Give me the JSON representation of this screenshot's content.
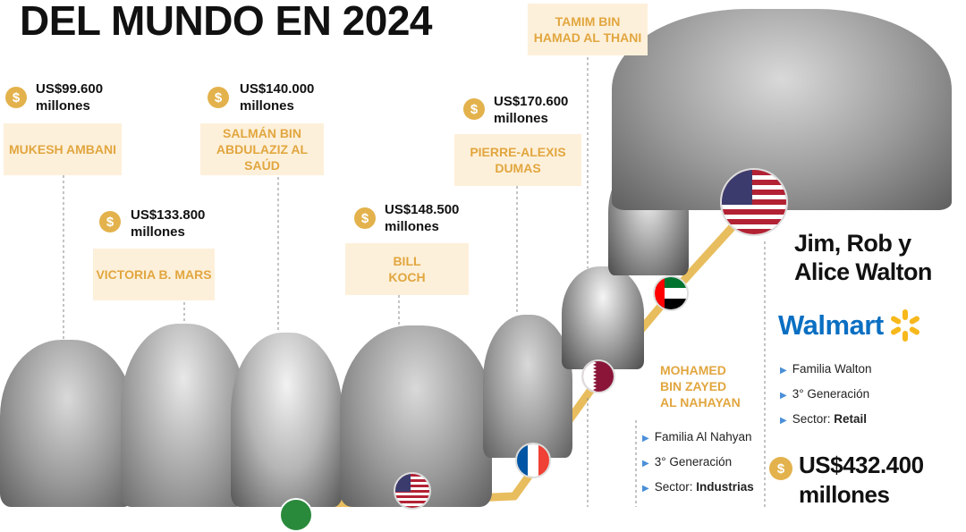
{
  "title": "DEL MUNDO EN 2024",
  "coin_symbol": "$",
  "people": [
    {
      "name": "MUKESH AMBANI",
      "amount": "US$99.600",
      "unit": "millones"
    },
    {
      "name": "VICTORIA B. MARS",
      "amount": "US$133.800",
      "unit": "millones"
    },
    {
      "name": "SALMÁN BIN ABDULAZIZ AL SAÚD",
      "amount": "US$140.000",
      "unit": "millones"
    },
    {
      "name": "BILL KOCH",
      "amount": "US$148.500",
      "unit": "millones"
    },
    {
      "name": "PIERRE-ALEXIS DUMAS",
      "amount": "US$170.600",
      "unit": "millones"
    },
    {
      "name": "TAMIM BIN HAMAD AL THANI"
    }
  ],
  "nahayan": {
    "name_lines": [
      "MOHAMED",
      "BIN ZAYED",
      "AL NAHAYAN"
    ],
    "bullets": [
      {
        "text": "Familia Al Nahyan"
      },
      {
        "text": "3° Generación"
      },
      {
        "label": "Sector: ",
        "value": "Industrias"
      }
    ]
  },
  "walton": {
    "name_lines": [
      "Jim, Rob y",
      "Alice Walton"
    ],
    "logo": "Walmart",
    "bullets": [
      {
        "text": "Familia Walton"
      },
      {
        "text": "3° Generación"
      },
      {
        "label": "Sector: ",
        "value": "Retail"
      }
    ],
    "amount": "US$432.400",
    "unit": "millones"
  },
  "colors": {
    "accent": "#e1a63f",
    "box_bg": "#fdf0da",
    "coin": "#e3b24c",
    "walmart_blue": "#0a6fc2",
    "walmart_yellow": "#f7b81b"
  },
  "icons": [
    "dollar-coin-icon",
    "flag-usa-icon",
    "flag-uae-icon",
    "flag-qatar-icon",
    "flag-france-icon",
    "walmart-spark-icon",
    "bullet-triangle-icon"
  ]
}
